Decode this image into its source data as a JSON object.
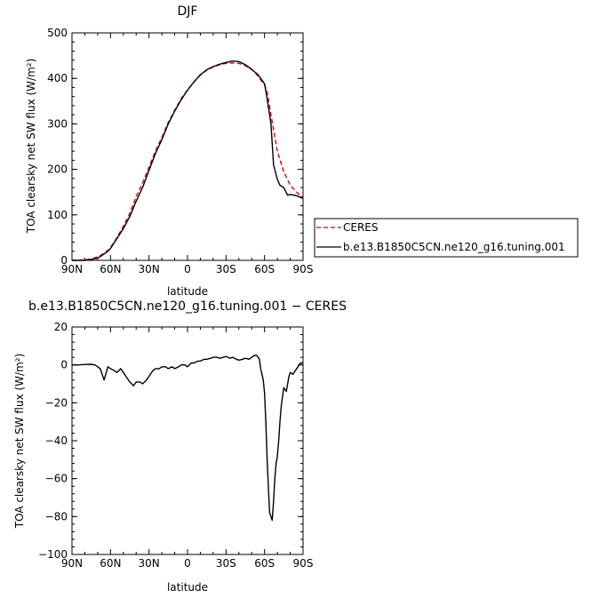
{
  "chart_data": [
    {
      "type": "line",
      "title": "DJF",
      "xlabel": "latitude",
      "ylabel": "TOA clearsky net SW flux (W/m²)",
      "x_ticks": [
        "90N",
        "60N",
        "30N",
        "0",
        "30S",
        "60S",
        "90S"
      ],
      "x_tick_values": [
        90,
        60,
        30,
        0,
        -30,
        -60,
        -90
      ],
      "y_ticks": [
        "0",
        "100",
        "200",
        "300",
        "400",
        "500"
      ],
      "xlim": [
        90,
        -90
      ],
      "ylim": [
        0,
        500
      ],
      "legend_position": "right",
      "series": [
        {
          "name": "CERES",
          "color": "#dd0000",
          "dash": true,
          "x": [
            90,
            85,
            80,
            75,
            70,
            67,
            65,
            62,
            60,
            55,
            50,
            45,
            40,
            35,
            30,
            25,
            20,
            15,
            10,
            5,
            0,
            -5,
            -10,
            -15,
            -20,
            -25,
            -30,
            -35,
            -40,
            -45,
            -50,
            -55,
            -60,
            -62,
            -65,
            -70,
            -75,
            -80,
            -85,
            -90
          ],
          "y": [
            0,
            0,
            1,
            3,
            8,
            12,
            16,
            22,
            28,
            50,
            75,
            103,
            140,
            170,
            205,
            240,
            270,
            303,
            330,
            355,
            375,
            392,
            407,
            418,
            425,
            430,
            433,
            434,
            433,
            428,
            420,
            405,
            385,
            370,
            320,
            240,
            195,
            165,
            150,
            137
          ]
        },
        {
          "name": "b.e13.B1850C5CN.ne120_g16.tuning.001",
          "color": "#000000",
          "dash": false,
          "x": [
            90,
            85,
            80,
            75,
            70,
            67,
            65,
            62,
            60,
            55,
            50,
            45,
            40,
            35,
            30,
            25,
            20,
            15,
            10,
            5,
            0,
            -5,
            -10,
            -15,
            -20,
            -25,
            -30,
            -35,
            -40,
            -45,
            -50,
            -55,
            -60,
            -62,
            -65,
            -67,
            -70,
            -72,
            -75,
            -78,
            -80,
            -85,
            -90
          ],
          "y": [
            0,
            0,
            0,
            2,
            5,
            10,
            14,
            20,
            26,
            48,
            70,
            96,
            130,
            160,
            198,
            235,
            265,
            300,
            328,
            353,
            374,
            392,
            408,
            419,
            426,
            431,
            435,
            438,
            437,
            430,
            420,
            408,
            388,
            355,
            300,
            210,
            178,
            165,
            160,
            143,
            145,
            142,
            136
          ]
        }
      ]
    },
    {
      "type": "line",
      "title": "b.e13.B1850C5CN.ne120_g16.tuning.001 − CERES",
      "xlabel": "latitude",
      "ylabel": "TOA clearsky net SW flux (W/m²)",
      "x_ticks": [
        "90N",
        "60N",
        "30N",
        "0",
        "30S",
        "60S",
        "90S"
      ],
      "x_tick_values": [
        90,
        60,
        30,
        0,
        -30,
        -60,
        -90
      ],
      "y_ticks": [
        "20",
        "0",
        "−20",
        "−40",
        "−60",
        "−80",
        "−100"
      ],
      "xlim": [
        90,
        -90
      ],
      "ylim": [
        -100,
        20
      ],
      "series": [
        {
          "name": "",
          "color": "#000000",
          "dash": false,
          "x": [
            90,
            85,
            80,
            75,
            72,
            70,
            68,
            65,
            62,
            60,
            57,
            55,
            52,
            50,
            48,
            45,
            42,
            40,
            37,
            35,
            32,
            30,
            27,
            25,
            22,
            20,
            17,
            15,
            12,
            10,
            7,
            5,
            2,
            0,
            -3,
            -5,
            -8,
            -10,
            -13,
            -15,
            -18,
            -20,
            -23,
            -25,
            -28,
            -30,
            -33,
            -35,
            -38,
            -40,
            -43,
            -45,
            -48,
            -50,
            -52,
            -54,
            -56,
            -57,
            -58,
            -59,
            -60,
            -61,
            -62,
            -63,
            -64,
            -65,
            -66,
            -67,
            -68,
            -69,
            -70,
            -71,
            -72,
            -73,
            -75,
            -77,
            -79,
            -80,
            -82,
            -83,
            -85,
            -87,
            -88,
            -90
          ],
          "y": [
            0,
            0,
            0.2,
            0.3,
            0,
            -1,
            -2,
            -8,
            -1,
            -2,
            -3,
            -4,
            -2,
            -4,
            -6,
            -9,
            -11,
            -9,
            -9,
            -10,
            -8,
            -6,
            -3,
            -2,
            -2,
            -1,
            -1,
            -2,
            -1,
            -2,
            -1,
            0,
            0,
            -1,
            1,
            1,
            2,
            2,
            3,
            3,
            3.5,
            4,
            4,
            3.5,
            4,
            4.5,
            3.5,
            4,
            3,
            2.5,
            3,
            3.5,
            3,
            4,
            5,
            5,
            3,
            -2,
            -5,
            -8,
            -15,
            -30,
            -50,
            -65,
            -78,
            -80,
            -82,
            -72,
            -60,
            -52,
            -48,
            -40,
            -30,
            -22,
            -12,
            -14,
            -6,
            -4,
            -5,
            -4,
            -2,
            0,
            1,
            1
          ]
        }
      ]
    }
  ]
}
